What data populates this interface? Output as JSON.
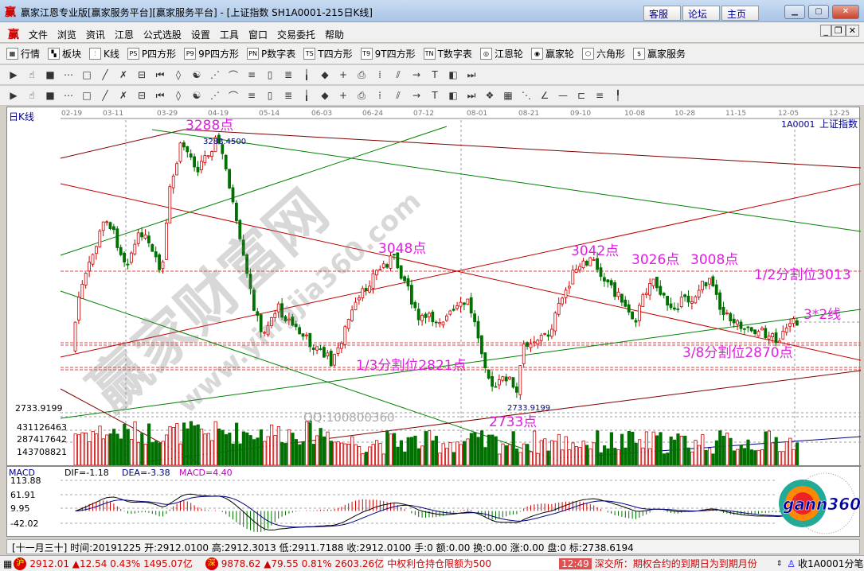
{
  "window": {
    "title": "赢家江恩专业版[赢家服务平台][赢家服务平台] - [上证指数  SH1A0001-215日K线]",
    "logo": "赢",
    "buttons": [
      "客服",
      "论坛",
      "主页"
    ],
    "controls": [
      "minimize",
      "maximize",
      "close"
    ]
  },
  "menu": {
    "logo": "赢",
    "items": [
      "文件",
      "浏览",
      "资讯",
      "江恩",
      "公式选股",
      "设置",
      "工具",
      "窗口",
      "交易委托",
      "帮助"
    ]
  },
  "toolbar1": [
    {
      "icon": "table-icon",
      "g": "▦",
      "label": "行情"
    },
    {
      "icon": "blocks-icon",
      "g": "▚",
      "label": "板块"
    },
    {
      "icon": "candles-icon",
      "g": "⫶",
      "label": "K线"
    },
    {
      "icon": "ps-icon",
      "g": "PS",
      "label": "P四方形"
    },
    {
      "icon": "p9-icon",
      "g": "P9",
      "label": "9P四方形"
    },
    {
      "icon": "pn-icon",
      "g": "PN",
      "label": "P数字表"
    },
    {
      "icon": "ts-icon",
      "g": "TS",
      "label": "T四方形"
    },
    {
      "icon": "t9-icon",
      "g": "T9",
      "label": "9T四方形"
    },
    {
      "icon": "tn-icon",
      "g": "TN",
      "label": "T数字表"
    },
    {
      "icon": "target-icon",
      "g": "◎",
      "label": "江恩轮"
    },
    {
      "icon": "big-icon",
      "g": "◉",
      "label": "赢家轮"
    },
    {
      "icon": "hexagon-icon",
      "g": "⬡",
      "label": "六角形"
    },
    {
      "icon": "dollar-icon",
      "g": "$",
      "label": "赢家服务"
    }
  ],
  "toolbar2": [
    "day-icon",
    "zoom-icon",
    "candle-icon",
    "bar-icon",
    "line-icon",
    "cross-icon",
    "first-icon",
    "last-icon",
    "left-icon",
    "right-icon",
    "up-icon",
    "down-icon",
    "up2-icon",
    "down2-icon",
    "up3-icon",
    "down3-icon",
    "hand-icon",
    "crosshair-icon",
    "pen-icon",
    "lasso-icon",
    "cycle-icon",
    "calendar-icon",
    "chart-icon",
    "save-icon",
    "print-icon",
    "copy-icon"
  ],
  "toolbar3": [
    "pencil-icon",
    "fan1-icon",
    "fan2-icon",
    "fan3-icon",
    "fan4-icon",
    "fan5-icon",
    "ellipse-icon",
    "grid-icon",
    "arc-icon",
    "angle-icon",
    "box-icon",
    "square-icon",
    "channel-icon",
    "gann-icon",
    "lines-icon",
    "lines2-icon",
    "hline-icon",
    "vline-icon",
    "trend-icon",
    "ray-icon",
    "parallel-icon",
    "rect-icon",
    "rect2-icon",
    "ruler-icon",
    "percent-icon",
    "delete-icon",
    "text-icon",
    "spiral-icon",
    "fib-icon",
    "fib2-icon",
    "fib3-icon",
    "fib4-icon",
    "fib5-icon",
    "fib6-icon"
  ],
  "chart": {
    "period_label": "日K线",
    "symbol": "1A0001",
    "name": "上证指数",
    "dates": [
      "02-19",
      "03-11",
      "03-29",
      "04-19",
      "05-14",
      "06-03",
      "06-24",
      "07-12",
      "08-01",
      "08-21",
      "09-10",
      "10-08",
      "10-28",
      "11-15",
      "12-05",
      "12-25"
    ],
    "price_axis": [
      "2733.9199"
    ],
    "volume_axis": [
      "431126463",
      "287417642",
      "143708821"
    ],
    "high_label": "3288.4500",
    "low_label": "2733.9199",
    "annotations": {
      "a3288": "3288点",
      "a3048": "3048点",
      "a3042": "3042点",
      "a3026": "3026点",
      "a3008": "3008点",
      "half": "1/2分割位3013",
      "three2": "3*2线",
      "third": "1/3分割位2821点",
      "three8": "3/8分割位2870点",
      "a2733": "2733点",
      "qq": "QQ:100800360"
    },
    "watermark": [
      "赢家财富网",
      "www.yingjia360.com"
    ],
    "colors": {
      "up": "#d00000",
      "down": "#007000",
      "annotation": "#e020e0",
      "macd_dea": "#000080",
      "macd_label": "#c000c0"
    }
  },
  "macd": {
    "title": "MACD",
    "dif": "DIF=-1.18",
    "dea": "DEA=-3.38",
    "macd": "MACD=4.40",
    "axis": [
      "113.88",
      "61.91",
      "9.95",
      "-42.02"
    ],
    "logo": "gann360"
  },
  "info": "[十一月三十] 时间:20191225 开:2912.0100 高:2912.3013 低:2911.7188 收:2912.0100 手:0 额:0.00 换:0.00 涨:0.00 盘:0 标:2738.6194",
  "status": {
    "sh_badge": "沪",
    "sh": "2912.01 ▲12.54 0.43% 1495.07亿",
    "sz_badge": "深",
    "sz": "9878.62 ▲79.55 0.81% 2603.26亿",
    "news1": "中权利仓持仓限额为500",
    "time": "12:49",
    "news2": "深交所：期权合约的到期日为到期月份",
    "right": "收1A0001分笔"
  }
}
